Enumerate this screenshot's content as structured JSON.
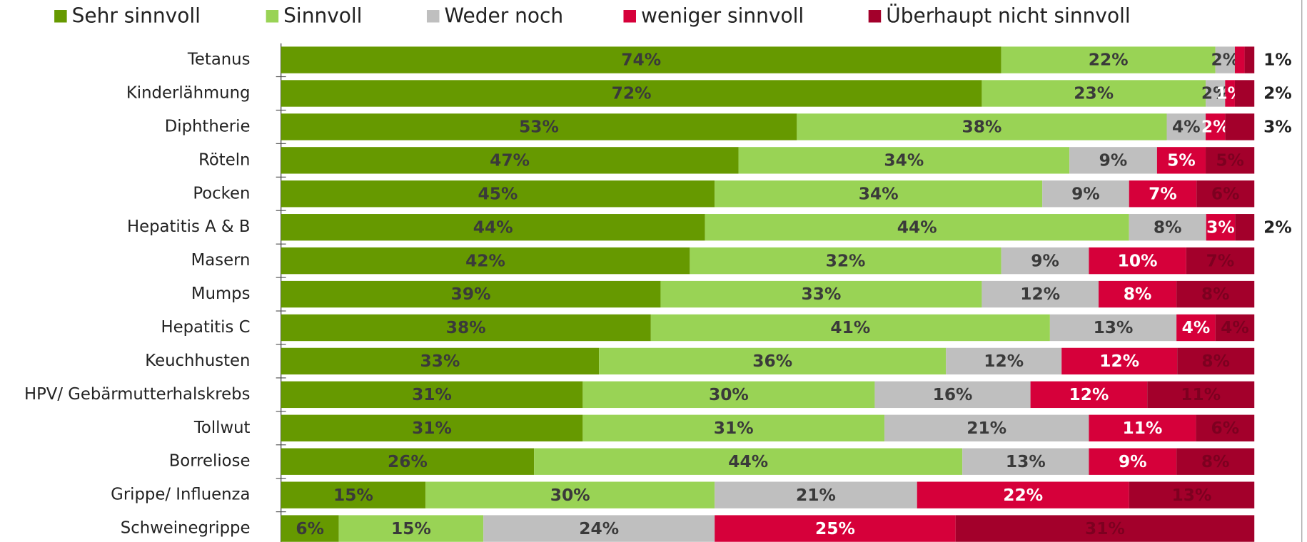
{
  "chart_data": {
    "type": "stacked-bar-horizontal",
    "categories": [
      "Tetanus",
      "Kinderlähmung",
      "Diphtherie",
      "Röteln",
      "Pocken",
      "Hepatitis A & B",
      "Masern",
      "Mumps",
      "Hepatitis C",
      "Keuchhusten",
      "HPV/ Gebärmutterhalskrebs",
      "Tollwut",
      "Borreliose",
      "Grippe/ Influenza",
      "Schweinegrippe"
    ],
    "series": [
      {
        "name": "Sehr sinnvoll",
        "color": "#669900",
        "values": [
          74,
          72,
          53,
          47,
          45,
          44,
          42,
          39,
          38,
          33,
          31,
          31,
          26,
          15,
          6
        ],
        "value_labels": [
          "74%",
          "72%",
          "53%",
          "47%",
          "45%",
          "44%",
          "42%",
          "39%",
          "38%",
          "33%",
          "31%",
          "31%",
          "26%",
          "15%",
          "6%"
        ]
      },
      {
        "name": "Sinnvoll",
        "color": "#99d355",
        "values": [
          22,
          23,
          38,
          34,
          34,
          44,
          32,
          33,
          41,
          36,
          30,
          31,
          44,
          30,
          15
        ],
        "value_labels": [
          "22%",
          "23%",
          "38%",
          "34%",
          "34%",
          "44%",
          "32%",
          "33%",
          "41%",
          "36%",
          "30%",
          "31%",
          "44%",
          "30%",
          "15%"
        ]
      },
      {
        "name": "Weder noch",
        "color": "#bfbfbf",
        "values": [
          2,
          2,
          4,
          9,
          9,
          8,
          9,
          12,
          13,
          12,
          16,
          21,
          13,
          21,
          24
        ],
        "value_labels": [
          "2%",
          "2%",
          "4%",
          "9%",
          "9%",
          "8%",
          "9%",
          "12%",
          "13%",
          "12%",
          "16%",
          "21%",
          "13%",
          "21%",
          "24%"
        ]
      },
      {
        "name": "weniger sinnvoll",
        "color": "#d6003a",
        "values": [
          1,
          1,
          2,
          5,
          7,
          3,
          10,
          8,
          4,
          12,
          12,
          11,
          9,
          22,
          25
        ],
        "value_labels": [
          null,
          "1%",
          "2%",
          "5%",
          "7%",
          "3%",
          "10%",
          "8%",
          "4%",
          "12%",
          "12%",
          "11%",
          "9%",
          "22%",
          "25%"
        ]
      },
      {
        "name": "Überhaupt nicht sinnvoll",
        "color": "#a3002b",
        "values": [
          1,
          2,
          3,
          5,
          6,
          2,
          7,
          8,
          4,
          8,
          11,
          6,
          8,
          13,
          31
        ],
        "value_labels": [
          "1%",
          "2%",
          "3%",
          "5%",
          "6%",
          "2%",
          "7%",
          "8%",
          "4%",
          "8%",
          "11%",
          "6%",
          "8%",
          "13%",
          "31%"
        ]
      }
    ]
  }
}
